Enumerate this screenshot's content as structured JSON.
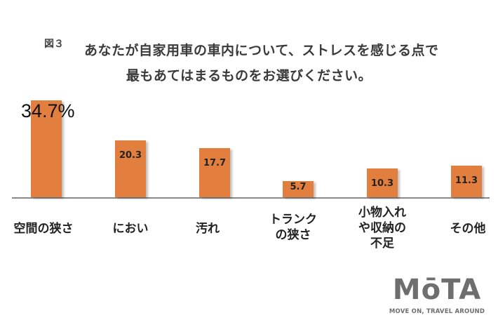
{
  "figure_label": "図３",
  "title_line1": "あなたが自家用車の車内について、ストレスを感じる点で",
  "title_line2": "最もあてはまるものをお選びください。",
  "logo": {
    "name": "MōTA",
    "tagline": "MOVE ON, TRAVEL AROUND"
  },
  "colors": {
    "bar": "#e27f3e",
    "axis": "#8a8a8a",
    "logo": "#6e6e6e"
  },
  "chart_data": {
    "type": "bar",
    "title": "あなたが自家用車の車内について、ストレスを感じる点で最もあてはまるものをお選びください。",
    "categories": [
      "空間の狭さ",
      "におい",
      "汚れ",
      "トランクの狭さ",
      "小物入れや収納の不足",
      "その他"
    ],
    "category_labels_display": [
      "空間の狭さ",
      "におい",
      "汚れ",
      "トランク\nの狭さ",
      "小物入れ\nや収納の\n不足",
      "その他"
    ],
    "values": [
      34.7,
      20.3,
      17.7,
      5.7,
      10.3,
      11.3
    ],
    "value_labels": [
      "34.7%",
      "20.3",
      "17.7",
      "5.7",
      "10.3",
      "11.3"
    ],
    "unit": "%",
    "xlabel": "",
    "ylabel": "",
    "ylim": [
      0,
      35
    ],
    "grid": false,
    "legend": null
  }
}
